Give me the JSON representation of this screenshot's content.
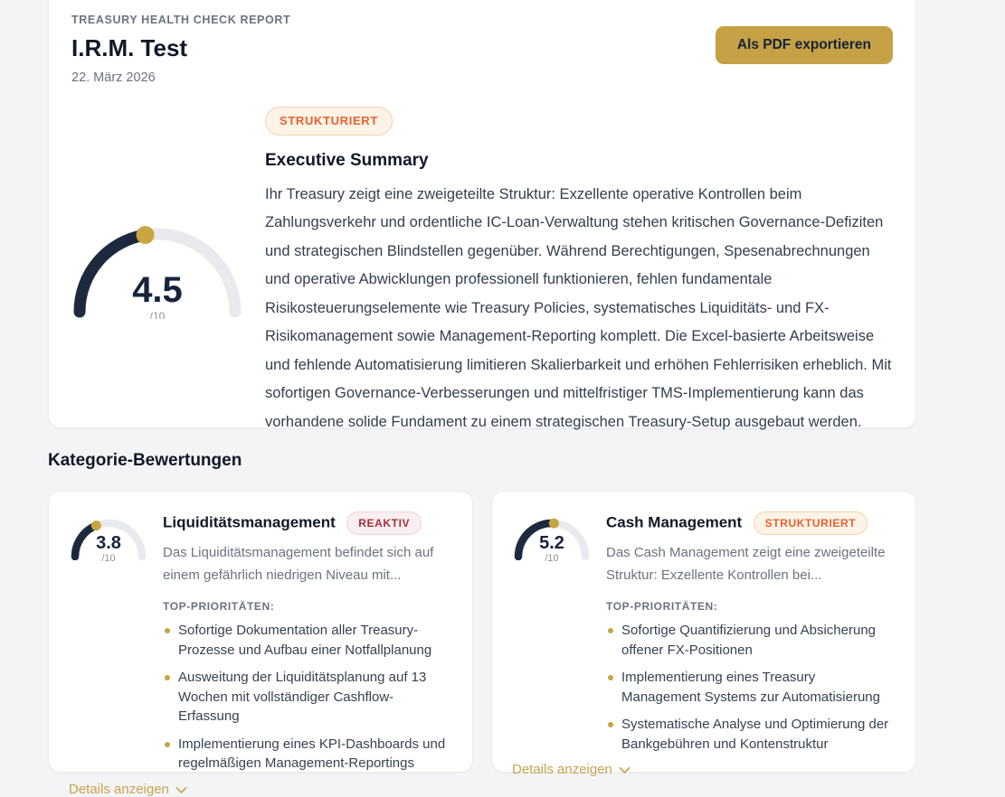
{
  "colors": {
    "page_bg": "#f3f4f6",
    "accent_gold": "#c5a044",
    "gauge_fill": "#1d2a3e",
    "gauge_track": "#e8eaed",
    "gauge_dot": "#c9a53f",
    "badge_orange": "#e8622d",
    "badge_red": "#a82b3d"
  },
  "header": {
    "eyebrow": "TREASURY HEALTH CHECK REPORT",
    "title": "I.R.M. Test",
    "date": "22. März 2026",
    "export_button": "Als PDF exportieren"
  },
  "summary": {
    "badge": "STRUKTURIERT",
    "score": "4.5",
    "score_value": 4.5,
    "score_max": "/10",
    "heading": "Executive Summary",
    "body": "Ihr Treasury zeigt eine zweigeteilte Struktur: Exzellente operative Kontrollen beim Zahlungsverkehr und ordentliche IC-Loan-Verwaltung stehen kritischen Governance-Defiziten und strategischen Blindstellen gegenüber. Während Berechtigungen, Spesenabrechnungen und operative Abwicklungen professionell funktionieren, fehlen fundamentale Risikosteuerungselemente wie Treasury Policies, systematisches Liquiditäts- und FX-Risikomanagement sowie Management-Reporting komplett. Die Excel-basierte Arbeitsweise und fehlende Automatisierung limitieren Skalierbarkeit und erhöhen Fehlerrisiken erheblich. Mit sofortigen Governance-Verbesserungen und mittelfristiger TMS-Implementierung kann das vorhandene solide Fundament zu einem strategischen Treasury-Setup ausgebaut werden."
  },
  "categories": {
    "heading": "Kategorie-Bewertungen",
    "priorities_label": "TOP-PRIORITÄTEN:",
    "details_label": "Details anzeigen",
    "cards": [
      {
        "title": "Liquiditätsmanagement",
        "badge": "REAKTIV",
        "badge_type": "red",
        "score": "3.8",
        "score_value": 3.8,
        "score_max": "/10",
        "description": "Das Liquiditätsmanagement befindet sich auf einem gefährlich niedrigen Niveau mit...",
        "priorities": [
          "Sofortige Dokumentation aller Treasury-Prozesse und Aufbau einer Notfallplanung",
          "Ausweitung der Liquiditätsplanung auf 13 Wochen mit vollständiger Cashflow-Erfassung",
          "Implementierung eines KPI-Dashboards und regelmäßigen Management-Reportings"
        ]
      },
      {
        "title": "Cash Management",
        "badge": "STRUKTURIERT",
        "badge_type": "orange",
        "score": "5.2",
        "score_value": 5.2,
        "score_max": "/10",
        "description": "Das Cash Management zeigt eine zweigeteilte Struktur: Exzellente Kontrollen bei...",
        "priorities": [
          "Sofortige Quantifizierung und Absicherung offener FX-Positionen",
          "Implementierung eines Treasury Management Systems zur Automatisierung",
          "Systematische Analyse und Optimierung der Bankgebühren und Kontenstruktur"
        ]
      }
    ]
  }
}
